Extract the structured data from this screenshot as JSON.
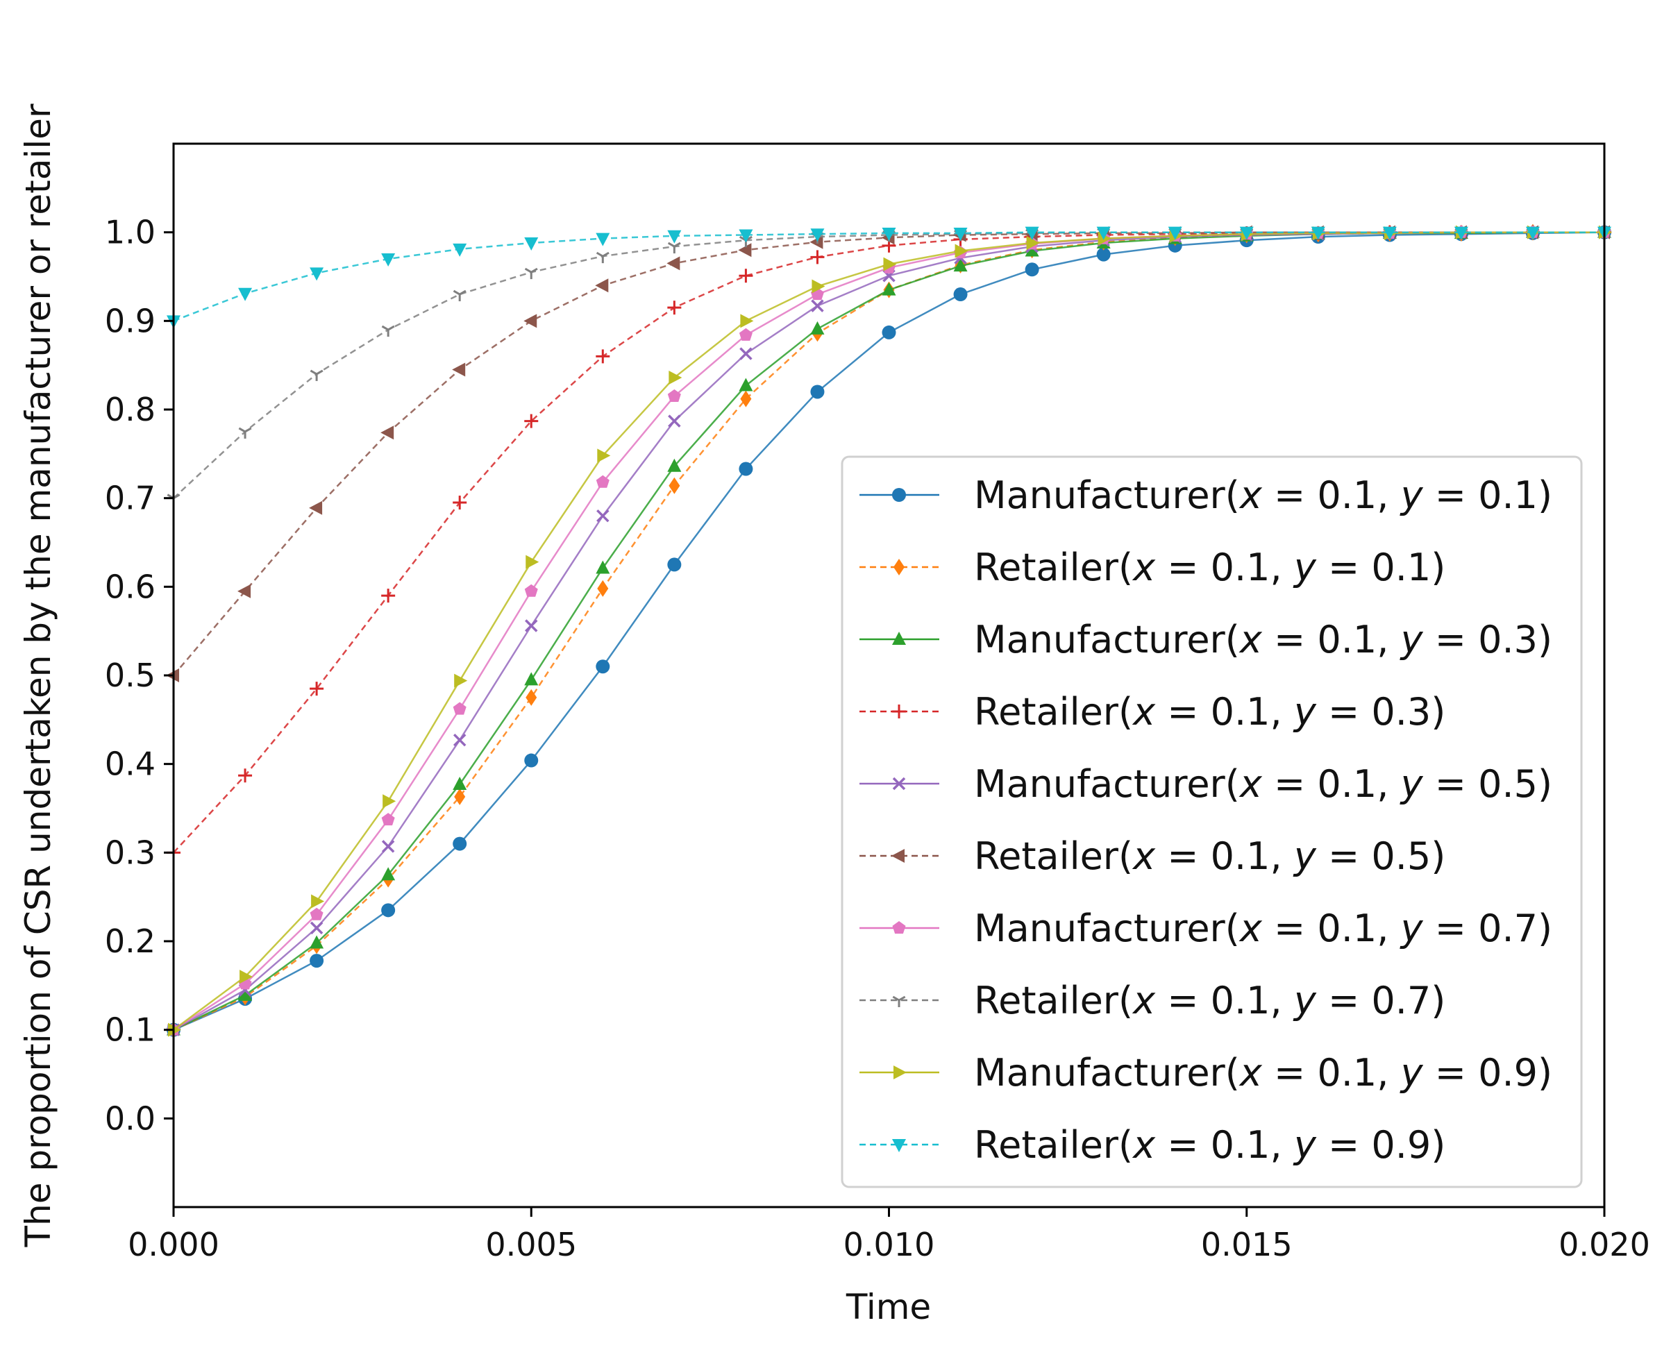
{
  "chart_data": {
    "type": "line",
    "xlabel": "Time",
    "ylabel": "The proportion of CSR undertaken by the manufacturer or retailer",
    "xlim": [
      0.0,
      0.02
    ],
    "ylim": [
      -0.1,
      1.1
    ],
    "x_ticks": [
      "0.000",
      "0.005",
      "0.010",
      "0.015",
      "0.020"
    ],
    "y_ticks": [
      "0.0",
      "0.1",
      "0.2",
      "0.3",
      "0.4",
      "0.5",
      "0.6",
      "0.7",
      "0.8",
      "0.9",
      "1.0"
    ],
    "grid": false,
    "legend_position": "lower-right",
    "x": [
      0.0,
      0.001,
      0.002,
      0.003,
      0.004,
      0.005,
      0.006,
      0.007,
      0.008,
      0.009,
      0.01,
      0.011,
      0.012,
      0.013,
      0.014,
      0.015,
      0.016,
      0.017,
      0.018,
      0.019,
      0.02
    ],
    "series": [
      {
        "name": "Manufacturer(x = 0.1, y = 0.1)",
        "color": "#1f77b4",
        "dash": "solid",
        "marker": "circle",
        "values": [
          0.1,
          0.135,
          0.178,
          0.235,
          0.31,
          0.404,
          0.51,
          0.625,
          0.733,
          0.82,
          0.887,
          0.93,
          0.958,
          0.975,
          0.985,
          0.991,
          0.995,
          0.997,
          0.998,
          0.999,
          1.0
        ]
      },
      {
        "name": "Retailer(x = 0.1, y = 0.1)",
        "color": "#ff7f0e",
        "dash": "dashed",
        "marker": "diamond",
        "values": [
          0.1,
          0.137,
          0.195,
          0.27,
          0.363,
          0.475,
          0.598,
          0.714,
          0.812,
          0.886,
          0.935,
          0.963,
          0.98,
          0.989,
          0.994,
          0.997,
          0.998,
          0.999,
          0.999,
          1.0,
          1.0
        ]
      },
      {
        "name": "Manufacturer(x = 0.1, y = 0.3)",
        "color": "#2ca02c",
        "dash": "solid",
        "marker": "triangle-up",
        "values": [
          0.1,
          0.139,
          0.198,
          0.275,
          0.377,
          0.495,
          0.621,
          0.736,
          0.827,
          0.891,
          0.935,
          0.962,
          0.979,
          0.988,
          0.993,
          0.996,
          0.998,
          0.999,
          0.999,
          1.0,
          1.0
        ]
      },
      {
        "name": "Retailer(x = 0.1, y = 0.3)",
        "color": "#d62728",
        "dash": "dashed",
        "marker": "plus",
        "values": [
          0.3,
          0.387,
          0.485,
          0.59,
          0.695,
          0.787,
          0.86,
          0.915,
          0.951,
          0.972,
          0.985,
          0.992,
          0.995,
          0.997,
          0.998,
          0.999,
          0.999,
          1.0,
          1.0,
          1.0,
          1.0
        ]
      },
      {
        "name": "Manufacturer(x = 0.1, y = 0.5)",
        "color": "#9467bd",
        "dash": "solid",
        "marker": "x",
        "values": [
          0.1,
          0.145,
          0.215,
          0.307,
          0.427,
          0.556,
          0.68,
          0.787,
          0.863,
          0.917,
          0.951,
          0.971,
          0.984,
          0.991,
          0.995,
          0.997,
          0.998,
          0.999,
          1.0,
          1.0,
          1.0
        ]
      },
      {
        "name": "Retailer(x = 0.1, y = 0.5)",
        "color": "#8c564b",
        "dash": "dashed",
        "marker": "triangle-left",
        "values": [
          0.5,
          0.595,
          0.689,
          0.774,
          0.845,
          0.9,
          0.94,
          0.965,
          0.98,
          0.989,
          0.994,
          0.997,
          0.998,
          0.999,
          0.999,
          1.0,
          1.0,
          1.0,
          1.0,
          1.0,
          1.0
        ]
      },
      {
        "name": "Manufacturer(x = 0.1, y = 0.7)",
        "color": "#e377c2",
        "dash": "solid",
        "marker": "pentagon",
        "values": [
          0.1,
          0.152,
          0.23,
          0.337,
          0.462,
          0.595,
          0.718,
          0.815,
          0.884,
          0.93,
          0.96,
          0.977,
          0.987,
          0.993,
          0.996,
          0.998,
          0.999,
          0.999,
          1.0,
          1.0,
          1.0
        ]
      },
      {
        "name": "Retailer(x = 0.1, y = 0.7)",
        "color": "#7f7f7f",
        "dash": "dashed",
        "marker": "tri-down",
        "values": [
          0.7,
          0.775,
          0.84,
          0.89,
          0.93,
          0.955,
          0.973,
          0.984,
          0.991,
          0.995,
          0.997,
          0.998,
          0.999,
          1.0,
          1.0,
          1.0,
          1.0,
          1.0,
          1.0,
          1.0,
          1.0
        ]
      },
      {
        "name": "Manufacturer(x = 0.1, y = 0.9)",
        "color": "#bcbd22",
        "dash": "solid",
        "marker": "triangle-right",
        "values": [
          0.1,
          0.16,
          0.245,
          0.358,
          0.494,
          0.628,
          0.748,
          0.836,
          0.9,
          0.939,
          0.964,
          0.979,
          0.988,
          0.993,
          0.996,
          0.998,
          0.999,
          0.999,
          1.0,
          1.0,
          1.0
        ]
      },
      {
        "name": "Retailer(x = 0.1, y = 0.9)",
        "color": "#17becf",
        "dash": "dashed",
        "marker": "triangle-down",
        "values": [
          0.9,
          0.931,
          0.954,
          0.97,
          0.981,
          0.988,
          0.993,
          0.996,
          0.997,
          0.998,
          0.999,
          0.999,
          1.0,
          1.0,
          1.0,
          1.0,
          1.0,
          1.0,
          1.0,
          1.0,
          1.0
        ]
      }
    ],
    "legend_entries": [
      {
        "prefix": "Manufacturer(",
        "x_val": "0.1",
        "y_val": "0.1"
      },
      {
        "prefix": "Retailer(",
        "x_val": "0.1",
        "y_val": "0.1"
      },
      {
        "prefix": "Manufacturer(",
        "x_val": "0.1",
        "y_val": "0.3"
      },
      {
        "prefix": "Retailer(",
        "x_val": "0.1",
        "y_val": "0.3"
      },
      {
        "prefix": "Manufacturer(",
        "x_val": "0.1",
        "y_val": "0.5"
      },
      {
        "prefix": "Retailer(",
        "x_val": "0.1",
        "y_val": "0.5"
      },
      {
        "prefix": "Manufacturer(",
        "x_val": "0.1",
        "y_val": "0.7"
      },
      {
        "prefix": "Retailer(",
        "x_val": "0.1",
        "y_val": "0.7"
      },
      {
        "prefix": "Manufacturer(",
        "x_val": "0.1",
        "y_val": "0.9"
      },
      {
        "prefix": "Retailer(",
        "x_val": "0.1",
        "y_val": "0.9"
      }
    ]
  }
}
